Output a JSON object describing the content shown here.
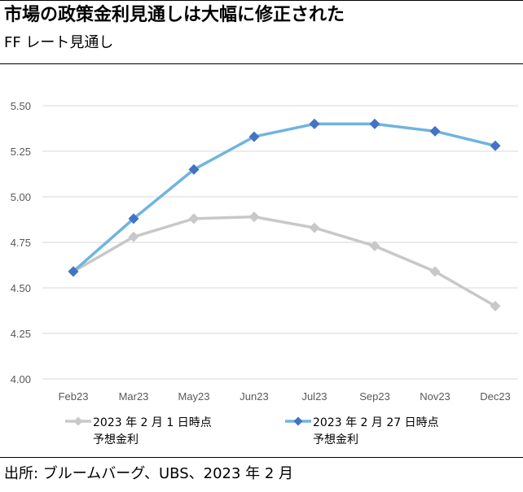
{
  "header": {
    "title": "市場の政策金利見通しは大幅に修正された",
    "subtitle": "FF レート見通し"
  },
  "footer": {
    "source": "出所: ブルームバーグ、UBS、2023 年 2 月"
  },
  "chart_data": {
    "type": "line",
    "title": "市場の政策金利見通しは大幅に修正された",
    "subtitle": "FF レート見通し",
    "xlabel": "",
    "ylabel": "",
    "categories": [
      "Feb23",
      "Mar23",
      "May23",
      "Jun23",
      "Jul23",
      "Sep23",
      "Nov23",
      "Dec23"
    ],
    "y_ticks": [
      "4.00",
      "4.25",
      "4.50",
      "4.75",
      "5.00",
      "5.25",
      "5.50"
    ],
    "ylim": [
      4.0,
      5.5
    ],
    "grid": true,
    "legend_position": "bottom",
    "series": [
      {
        "name_lines": [
          "2023 年 2 月 1 日時点",
          "予想金利"
        ],
        "color": "#c8c8c8",
        "marker": "diamond",
        "values": [
          4.59,
          4.78,
          4.88,
          4.89,
          4.83,
          4.73,
          4.59,
          4.4
        ]
      },
      {
        "name_lines": [
          "2023 年 2 月 27 日時点",
          "予想金利"
        ],
        "color": "#6fb4e0",
        "marker_color": "#4472c4",
        "marker": "diamond",
        "values": [
          4.59,
          4.88,
          5.15,
          5.33,
          5.4,
          5.4,
          5.36,
          5.28
        ]
      }
    ]
  }
}
